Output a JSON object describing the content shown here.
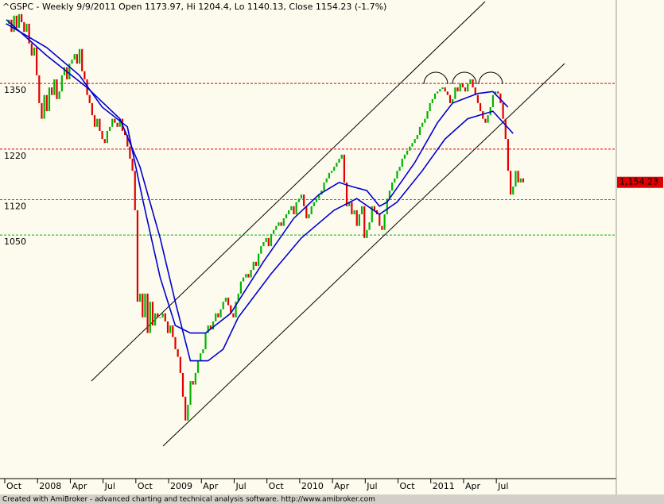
{
  "chart_data": {
    "type": "candlestick",
    "title": "^GSPC - Weekly 9/9/2011 Open 1173.97, Hi 1204.4, Lo 1140.13, Close 1154.23 (-1.7%)",
    "footer": "Created with AmiBroker - advanced charting and technical analysis software. http://www.amibroker.com",
    "categories": [
      "Oct",
      null,
      null,
      null,
      null,
      null,
      null,
      null,
      null,
      null,
      null,
      null,
      null,
      "2008",
      null,
      null,
      null,
      null,
      null,
      null,
      null,
      null,
      null,
      null,
      null,
      null,
      "Apr",
      null,
      null,
      null,
      null,
      null,
      null,
      null,
      null,
      null,
      null,
      null,
      null,
      "Jul",
      null,
      null,
      null,
      null,
      null,
      null,
      null,
      null,
      null,
      null,
      null,
      null,
      "Oct",
      null,
      null,
      null,
      null,
      null,
      null,
      null,
      null,
      null,
      null,
      null,
      null,
      "2009",
      null,
      null,
      null,
      null,
      null,
      null,
      null,
      null,
      null,
      null,
      null,
      null,
      "Apr",
      null,
      null,
      null,
      null,
      null,
      null,
      null,
      null,
      null,
      null,
      null,
      null,
      "Jul",
      null,
      null,
      null,
      null,
      null,
      null,
      null,
      null,
      null,
      null,
      null,
      null,
      "Oct",
      null,
      null,
      null,
      null,
      null,
      null,
      null,
      null,
      null,
      null,
      null,
      null,
      "2010",
      null,
      null,
      null,
      null,
      null,
      null,
      null,
      null,
      null,
      null,
      null,
      null,
      "Apr",
      null,
      null,
      null,
      null,
      null,
      null,
      null,
      null,
      null,
      null,
      null,
      null,
      "Jul",
      null,
      null,
      null,
      null,
      null,
      null,
      null,
      null,
      null,
      null,
      null,
      null,
      "Oct",
      null,
      null,
      null,
      null,
      null,
      null,
      null,
      null,
      null,
      null,
      null,
      null,
      "2011",
      null,
      null,
      null,
      null,
      null,
      null,
      null,
      null,
      null,
      null,
      null,
      null,
      "Apr",
      null,
      null,
      null,
      null,
      null,
      null,
      null,
      null,
      null,
      null,
      null,
      null,
      "Jul",
      null,
      null,
      null,
      null,
      null,
      null,
      null,
      null,
      null,
      null
    ],
    "values": [
      1468,
      1476,
      1452,
      1484,
      1460,
      1487,
      1471,
      1452,
      1468,
      1429,
      1405,
      1421,
      1366,
      1311,
      1280,
      1327,
      1295,
      1342,
      1327,
      1358,
      1319,
      1334,
      1366,
      1382,
      1358,
      1389,
      1397,
      1408,
      1389,
      1418,
      1374,
      1358,
      1327,
      1311,
      1287,
      1264,
      1280,
      1256,
      1240,
      1232,
      1256,
      1264,
      1280,
      1272,
      1264,
      1280,
      1256,
      1248,
      1225,
      1201,
      1177,
      1099,
      918,
      934,
      887,
      934,
      856,
      918,
      871,
      895,
      887,
      887,
      895,
      879,
      856,
      871,
      848,
      824,
      809,
      777,
      730,
      683,
      714,
      761,
      754,
      777,
      801,
      816,
      824,
      856,
      871,
      863,
      879,
      895,
      887,
      903,
      918,
      926,
      911,
      895,
      887,
      918,
      934,
      958,
      966,
      973,
      966,
      981,
      997,
      989,
      1013,
      1028,
      1036,
      1044,
      1028,
      1052,
      1060,
      1068,
      1075,
      1068,
      1083,
      1091,
      1099,
      1107,
      1091,
      1115,
      1122,
      1130,
      1107,
      1083,
      1091,
      1107,
      1115,
      1122,
      1130,
      1138,
      1154,
      1162,
      1173,
      1177,
      1185,
      1193,
      1201,
      1209,
      1154,
      1107,
      1115,
      1091,
      1099,
      1068,
      1091,
      1107,
      1044,
      1060,
      1075,
      1107,
      1099,
      1091,
      1068,
      1060,
      1091,
      1122,
      1138,
      1154,
      1162,
      1177,
      1185,
      1201,
      1209,
      1217,
      1225,
      1232,
      1240,
      1248,
      1264,
      1272,
      1280,
      1295,
      1311,
      1319,
      1330,
      1334,
      1339,
      1342,
      1334,
      1327,
      1311,
      1319,
      1342,
      1334,
      1350,
      1342,
      1334,
      1350,
      1358,
      1342,
      1327,
      1311,
      1295,
      1280,
      1272,
      1287,
      1303,
      1327,
      1334,
      1330,
      1311,
      1280,
      1240,
      1177,
      1130,
      1146,
      1177,
      1154,
      1162,
      1154.23
    ],
    "last_price_label": "1,154.23",
    "up_color": "#00b400",
    "down_color": "#e00000",
    "moving_averages": [
      {
        "color": "#0000d0",
        "x": [
          0,
          16,
          29,
          38,
          48,
          54,
          61,
          67,
          73,
          79,
          89,
          102,
          114,
          124,
          132,
          137,
          143,
          148,
          151,
          162,
          171,
          177,
          187,
          193,
          199
        ],
        "values": [
          1468,
          1421,
          1366,
          1303,
          1264,
          1122,
          966,
          871,
          856,
          856,
          895,
          997,
          1083,
          1130,
          1154,
          1146,
          1138,
          1107,
          1115,
          1193,
          1272,
          1311,
          1330,
          1334,
          1303
        ]
      },
      {
        "color": "#0000d0",
        "x": [
          0,
          16,
          32,
          45,
          53,
          61,
          67,
          73,
          80,
          86,
          92,
          105,
          117,
          130,
          139,
          148,
          155,
          165,
          174,
          183,
          193,
          201
        ],
        "values": [
          1476,
          1405,
          1342,
          1280,
          1185,
          1044,
          918,
          801,
          801,
          824,
          887,
          973,
          1044,
          1099,
          1122,
          1091,
          1115,
          1177,
          1240,
          1280,
          1295,
          1251
        ]
      }
    ],
    "ylim": [
      568,
      1515
    ],
    "yticks": [
      1350,
      1220,
      1120,
      1050
    ],
    "ytick_colors": [
      "#e00000",
      "#e00000",
      "#00b400",
      "#00b400"
    ]
  }
}
